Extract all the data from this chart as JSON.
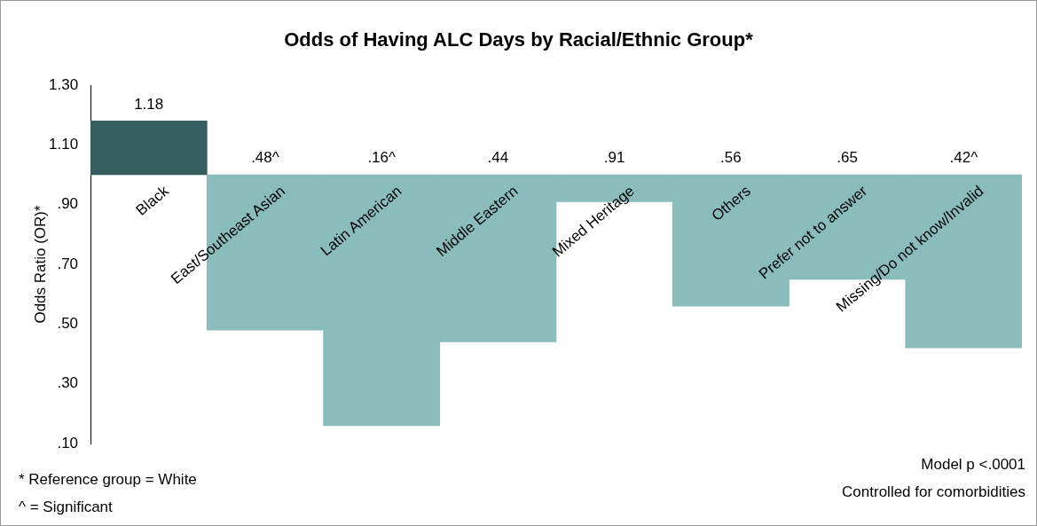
{
  "chart_data": {
    "type": "bar",
    "title": "Odds of Having ALC Days by Racial/Ethnic Group*",
    "ylabel": "Odds Ratio (OR)*",
    "categories": [
      "Black",
      "East/Southeast Asian",
      "Latin American",
      "Middle Eastern",
      "Mixed Heritage",
      "Others",
      "Prefer not to answer",
      "Missing/Do not know/Invalid"
    ],
    "base": [
      1,
      1,
      1,
      1,
      1,
      1,
      1,
      1
    ],
    "values": [
      0.18,
      -0.52,
      -0.84,
      -0.56,
      -0.09,
      -0.44,
      -0.35,
      -0.58
    ],
    "value_labels": [
      "1.18",
      ".48^",
      ".16^",
      ".44",
      ".91",
      ".56",
      ".65",
      ".42^"
    ],
    "colors": [
      "#345e5e",
      "#8bbcbc",
      "#8bbcbc",
      "#8bbcbc",
      "#8bbcbc",
      "#8bbcbc",
      "#8bbcbc",
      "#8bbcbc"
    ],
    "ylim": [
      0.1,
      1.3
    ],
    "yticks": [
      {
        "value": 0.1,
        "label": ".10"
      },
      {
        "value": 0.3,
        "label": ".30"
      },
      {
        "value": 0.5,
        "label": ".50"
      },
      {
        "value": 0.7,
        "label": ".70"
      },
      {
        "value": 0.9,
        "label": ".90"
      },
      {
        "value": 1.1,
        "label": "1.10"
      },
      {
        "value": 1.3,
        "label": "1.30"
      }
    ],
    "grid": false,
    "legend": false,
    "annotations": [
      "* Reference group = White",
      "^ = Significant",
      "Model p <.0001",
      "Controlled for comorbidities"
    ]
  }
}
